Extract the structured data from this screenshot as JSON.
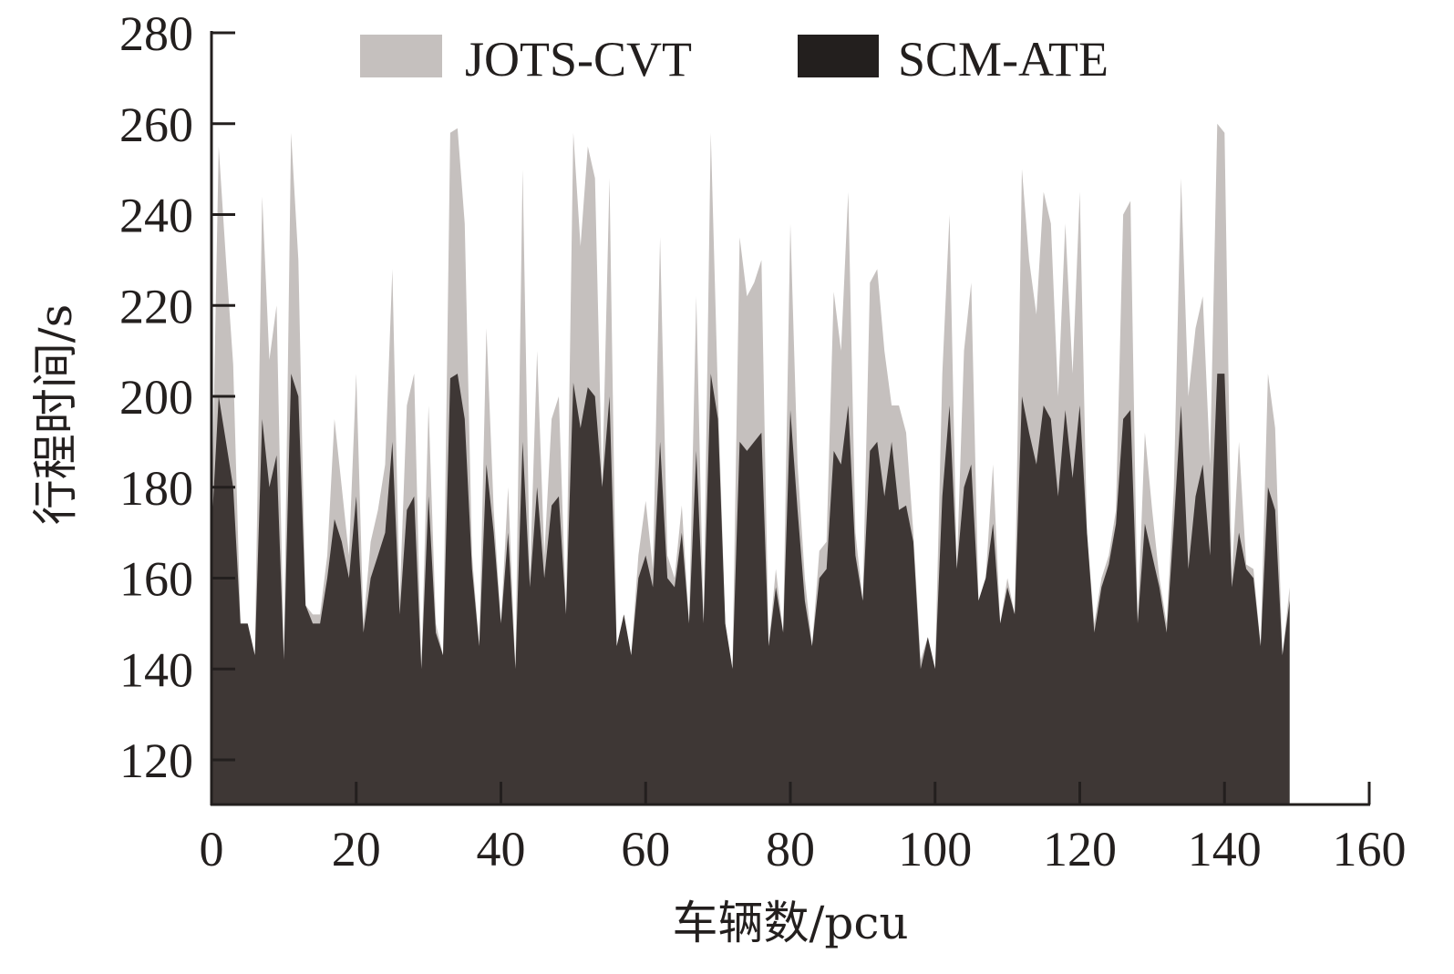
{
  "chart_data": {
    "type": "area",
    "title": "",
    "xlabel": "车辆数/pcu",
    "ylabel": "行程时间/s",
    "xlim": [
      0,
      160
    ],
    "ylim": [
      110,
      280
    ],
    "xticks": [
      "0",
      "20",
      "40",
      "60",
      "80",
      "100",
      "120",
      "140",
      "160"
    ],
    "yticks": [
      "120",
      "140",
      "160",
      "180",
      "200",
      "220",
      "240",
      "260",
      "280"
    ],
    "legend_position": "top",
    "grid": false,
    "x_start": 0,
    "series": [
      {
        "name": "JOTS-CVT",
        "color": "#c5c0be",
        "values": [
          170,
          255,
          230,
          207,
          150,
          150,
          143,
          244,
          208,
          220,
          142,
          258,
          230,
          154,
          152,
          152,
          165,
          195,
          180,
          165,
          205,
          150,
          168,
          175,
          185,
          228,
          155,
          198,
          205,
          140,
          198,
          150,
          143,
          258,
          259,
          238,
          165,
          145,
          215,
          175,
          150,
          180,
          140,
          250,
          160,
          210,
          165,
          195,
          200,
          152,
          258,
          233,
          255,
          248,
          180,
          248,
          145,
          152,
          143,
          165,
          177,
          162,
          235,
          165,
          160,
          176,
          150,
          222,
          150,
          258,
          200,
          150,
          140,
          235,
          222,
          225,
          230,
          145,
          162,
          148,
          238,
          185,
          160,
          145,
          166,
          168,
          223,
          210,
          245,
          170,
          155,
          225,
          228,
          210,
          198,
          198,
          192,
          170,
          142,
          147,
          140,
          205,
          240,
          162,
          210,
          225,
          155,
          160,
          185,
          150,
          160,
          152,
          250,
          230,
          218,
          245,
          238,
          200,
          238,
          205,
          245,
          170,
          150,
          160,
          165,
          175,
          240,
          243,
          150,
          192,
          175,
          160,
          150,
          180,
          248,
          200,
          215,
          222,
          185,
          260,
          258,
          160,
          190,
          163,
          162,
          145,
          205,
          193,
          143,
          158
        ]
      },
      {
        "name": "SCM-ATE",
        "color": "#3e3735",
        "values": [
          170,
          200,
          190,
          180,
          150,
          150,
          143,
          195,
          180,
          187,
          142,
          205,
          200,
          154,
          150,
          150,
          160,
          173,
          168,
          160,
          178,
          148,
          160,
          165,
          170,
          190,
          152,
          175,
          178,
          140,
          178,
          148,
          143,
          204,
          205,
          195,
          162,
          145,
          185,
          170,
          150,
          170,
          140,
          190,
          158,
          180,
          160,
          176,
          178,
          152,
          203,
          193,
          202,
          200,
          180,
          200,
          145,
          152,
          143,
          160,
          165,
          158,
          190,
          160,
          158,
          170,
          150,
          188,
          150,
          205,
          195,
          150,
          140,
          190,
          188,
          190,
          192,
          145,
          158,
          148,
          197,
          175,
          155,
          145,
          160,
          162,
          188,
          185,
          198,
          165,
          155,
          188,
          190,
          178,
          190,
          175,
          176,
          168,
          140,
          147,
          140,
          178,
          198,
          162,
          180,
          185,
          155,
          160,
          172,
          150,
          158,
          152,
          200,
          192,
          185,
          198,
          195,
          178,
          197,
          182,
          198,
          170,
          148,
          158,
          163,
          172,
          195,
          197,
          150,
          172,
          165,
          158,
          148,
          172,
          198,
          162,
          178,
          185,
          165,
          205,
          205,
          158,
          170,
          162,
          160,
          145,
          180,
          175,
          143,
          155
        ]
      }
    ]
  }
}
